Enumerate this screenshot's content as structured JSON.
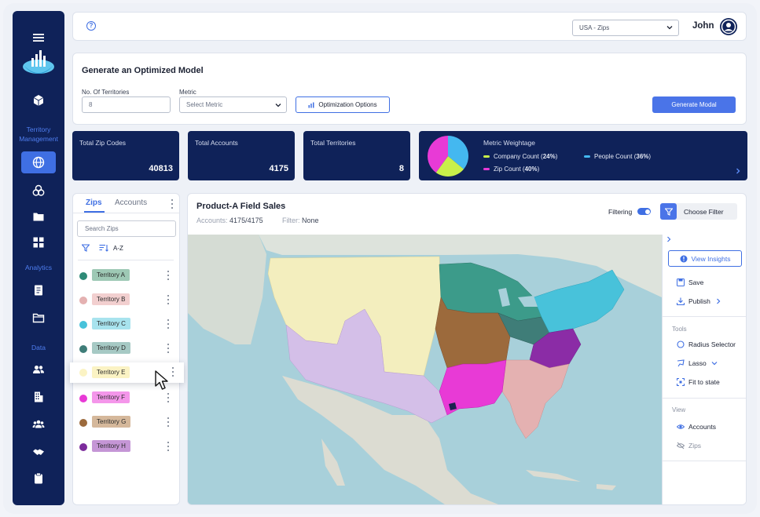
{
  "topbar": {
    "region_select": "USA - Zips",
    "user_name": "John"
  },
  "sidebar": {
    "section_territory": "Territory\nManagement",
    "section_analytics": "Analytics",
    "section_data": "Data",
    "active_item": "territory-globe"
  },
  "generate": {
    "title": "Generate an Optimized Model",
    "territories_label": "No. Of Territories",
    "territories_value": "8",
    "metric_label": "Metric",
    "metric_value": "Select Metric",
    "options_button": "Optimization Options",
    "generate_button": "Generate Modal"
  },
  "stats": [
    {
      "label": "Total Zip Codes",
      "value": "40813"
    },
    {
      "label": "Total Accounts",
      "value": "4175"
    },
    {
      "label": "Total Territories",
      "value": "8"
    }
  ],
  "metric_weightage": {
    "title": "Metric Weightage",
    "items": [
      {
        "name": "Company Count",
        "percent_label": "24%",
        "percent": 24,
        "color": "#c8f04a"
      },
      {
        "name": "People Count",
        "percent_label": "36%",
        "percent": 36,
        "color": "#44b8f0"
      },
      {
        "name": "Zip Count",
        "percent_label": "40%",
        "percent": 40,
        "color": "#e83ad6"
      }
    ]
  },
  "list_panel": {
    "tabs": [
      "Zips",
      "Accounts"
    ],
    "active_tab": "Zips",
    "search_placeholder": "Search Zips",
    "sort_label": "A-Z",
    "territories": [
      {
        "name": "Territory A",
        "color": "#2e8a76",
        "tag_bg": "#9ec9b5"
      },
      {
        "name": "Territory B",
        "color": "#e4b1b1",
        "tag_bg": "#f2cfcf"
      },
      {
        "name": "Territory C",
        "color": "#48c2da",
        "tag_bg": "#a8e3ee"
      },
      {
        "name": "Territory D",
        "color": "#3f7d78",
        "tag_bg": "#a6c9c4"
      },
      {
        "name": "Territory E",
        "color": "#fbf3c4",
        "tag_bg": "#fbf3c4"
      },
      {
        "name": "Territory F",
        "color": "#e83ad6",
        "tag_bg": "#f496ea"
      },
      {
        "name": "Territory G",
        "color": "#9c6a3c",
        "tag_bg": "#d5b89b"
      },
      {
        "name": "Territory H",
        "color": "#7c2c9c",
        "tag_bg": "#c596d6"
      }
    ]
  },
  "map_panel": {
    "title": "Product-A Field Sales",
    "accounts_label": "Accounts:",
    "accounts_value": "4175/4175",
    "filter_label": "Filter:",
    "filter_value": "None",
    "filtering_label": "Filtering",
    "filtering_on": true,
    "choose_filter": "Choose Filter"
  },
  "tools_panel": {
    "view_insights": "View Insights",
    "save": "Save",
    "publish": "Publish",
    "tools_heading": "Tools",
    "radius_selector": "Radius Selector",
    "lasso": "Lasso",
    "fit_to_state": "Fit to state",
    "view_heading": "View",
    "accounts": "Accounts",
    "zips": "Zips"
  }
}
